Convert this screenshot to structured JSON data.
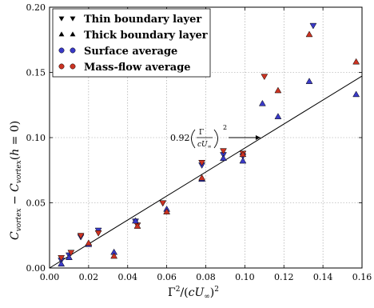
{
  "chart_data": {
    "type": "scatter",
    "xlabel": "Γ²/(cU∞)²",
    "ylabel": "C_vortex − C_vortex(h = 0)",
    "xlim": [
      0.0,
      0.16
    ],
    "ylim": [
      0.0,
      0.2
    ],
    "x_ticks": [
      "0.00",
      "0.02",
      "0.04",
      "0.06",
      "0.08",
      "0.10",
      "0.12",
      "0.14",
      "0.16"
    ],
    "y_ticks": [
      "0.00",
      "0.05",
      "0.10",
      "0.15",
      "0.20"
    ],
    "grid": true,
    "legend_placement": "top-left",
    "legend": [
      {
        "label": "Thin boundary layer",
        "marker": "triangle-down",
        "color": "#000000"
      },
      {
        "label": "Thick boundary layer",
        "marker": "triangle-up",
        "color": "#000000"
      },
      {
        "label": "Surface average",
        "marker": "circle",
        "color": "#2b2bb5"
      },
      {
        "label": "Mass-flow average",
        "marker": "circle",
        "color": "#c0302b"
      }
    ],
    "colors": {
      "surface": "#3a3ac8",
      "massflow": "#cc3322"
    },
    "series": [
      {
        "name": "Thin boundary layer, Surface average",
        "marker": "triangle-down",
        "color": "#3a3ac8",
        "x": [
          0.006,
          0.01,
          0.016,
          0.025,
          0.044,
          0.058,
          0.078,
          0.089,
          0.099,
          0.135
        ],
        "y": [
          0.006,
          0.01,
          0.024,
          0.029,
          0.036,
          0.05,
          0.079,
          0.087,
          0.086,
          0.186
        ]
      },
      {
        "name": "Thin boundary layer, Mass-flow average",
        "marker": "triangle-down",
        "color": "#cc3322",
        "x": [
          0.006,
          0.011,
          0.016,
          0.025,
          0.045,
          0.058,
          0.078,
          0.089,
          0.099,
          0.11
        ],
        "y": [
          0.008,
          0.012,
          0.025,
          0.027,
          0.033,
          0.05,
          0.081,
          0.09,
          0.088,
          0.147
        ]
      },
      {
        "name": "Thick boundary layer, Surface average",
        "marker": "triangle-up",
        "color": "#3a3ac8",
        "x": [
          0.006,
          0.01,
          0.02,
          0.033,
          0.044,
          0.06,
          0.078,
          0.089,
          0.099,
          0.109,
          0.117,
          0.133,
          0.157
        ],
        "y": [
          0.003,
          0.008,
          0.018,
          0.012,
          0.036,
          0.045,
          0.068,
          0.084,
          0.082,
          0.126,
          0.116,
          0.143,
          0.133
        ]
      },
      {
        "name": "Thick boundary layer, Mass-flow average",
        "marker": "triangle-up",
        "color": "#cc3322",
        "x": [
          0.02,
          0.033,
          0.045,
          0.06,
          0.078,
          0.099,
          0.117,
          0.133,
          0.157
        ],
        "y": [
          0.019,
          0.009,
          0.032,
          0.043,
          0.069,
          0.087,
          0.136,
          0.179,
          0.158
        ]
      }
    ],
    "fit_line": {
      "x": [
        0.0,
        0.16
      ],
      "y": [
        0.0,
        0.1472
      ]
    },
    "annotation": {
      "text": "0.92",
      "expr": "(Γ / cU∞)²",
      "arrow_to": [
        0.108,
        0.1
      ]
    }
  }
}
